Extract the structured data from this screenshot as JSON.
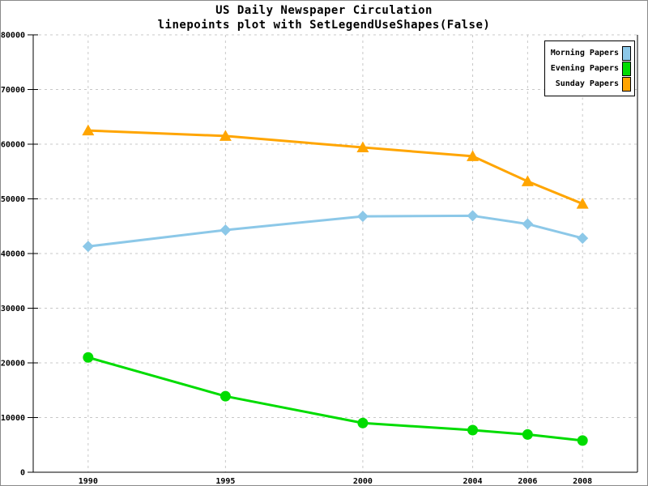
{
  "chart_data": {
    "type": "line",
    "title": "US Daily Newspaper Circulation",
    "subtitle": "linepoints plot with SetLegendUseShapes(False)",
    "xlabel": "",
    "ylabel": "",
    "x": [
      1990,
      1995,
      2000,
      2004,
      2006,
      2008
    ],
    "x_tick_labels": [
      "1990",
      "1995",
      "2000",
      "2004",
      "2006",
      "2008"
    ],
    "xlim": [
      1988,
      2010
    ],
    "y_ticks": [
      0,
      10000,
      20000,
      30000,
      40000,
      50000,
      60000,
      70000,
      80000
    ],
    "y_tick_labels": [
      "0",
      "10000",
      "20000",
      "30000",
      "40000",
      "50000",
      "60000",
      "70000",
      "80000"
    ],
    "ylim": [
      0,
      80000
    ],
    "grid": "dashed",
    "grid_color": "#c8c8c8",
    "axis_color": "#000000",
    "legend_position": "top-right",
    "legend_use_shapes": false,
    "series": [
      {
        "name": "Morning Papers",
        "color": "#8cc8e8",
        "marker": "diamond",
        "values": [
          41300,
          44300,
          46800,
          46900,
          45400,
          42800
        ]
      },
      {
        "name": "Evening Papers",
        "color": "#00dc00",
        "marker": "circle",
        "values": [
          21000,
          13900,
          9000,
          7700,
          6900,
          5800
        ]
      },
      {
        "name": "Sunday Papers",
        "color": "#ffa500",
        "marker": "triangle",
        "values": [
          62500,
          61500,
          59400,
          57800,
          53200,
          49100
        ]
      }
    ]
  }
}
